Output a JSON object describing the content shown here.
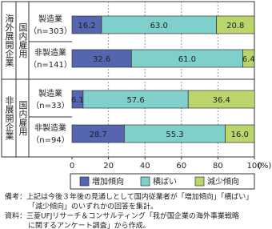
{
  "chart_data": {
    "type": "stacked-bar",
    "groups": [
      {
        "name": "海外展開企業",
        "sub": "国内雇用",
        "categories": [
          "製造業",
          "非製造業"
        ],
        "n": [
          "（n=303）",
          "（n=141）"
        ]
      },
      {
        "name": "非展開企業",
        "sub": "国内雇用",
        "categories": [
          "製造業",
          "非製造業"
        ],
        "n": [
          "（n=33）",
          "（n=94）"
        ]
      }
    ],
    "series": [
      {
        "name": "増加傾向",
        "color": "#5565b0",
        "values": [
          16.2,
          32.6,
          6.1,
          28.7
        ],
        "value_labels": [
          "16.2",
          "32.6",
          "6.1",
          "28.7"
        ]
      },
      {
        "name": "横ばい",
        "color": "#7fcfca",
        "values": [
          63.0,
          61.0,
          57.6,
          55.3
        ],
        "value_labels": [
          "63.0",
          "61.0",
          "57.6",
          "55.3"
        ]
      },
      {
        "name": "減少傾向",
        "color": "#b9d56c",
        "values": [
          20.8,
          6.4,
          36.4,
          16.0
        ],
        "value_labels": [
          "20.8",
          "6.4",
          "36.4",
          "16.0"
        ]
      }
    ],
    "xlim": [
      0,
      100
    ],
    "xticks": [
      0,
      20,
      40,
      60,
      80,
      100
    ],
    "x_unit": "(%)",
    "grid": true,
    "notes": [
      "備考：上記は今後３年後の見通しとして国内従業者が「増加傾向」「横ばい」",
      "「減少傾向」のいずれかの回答を集計。"
    ],
    "source": [
      "資料：三菱UFJリサーチ＆コンサルティング「我が国企業の海外事業戦略",
      "に関するアンケート調査」から作成。"
    ]
  }
}
